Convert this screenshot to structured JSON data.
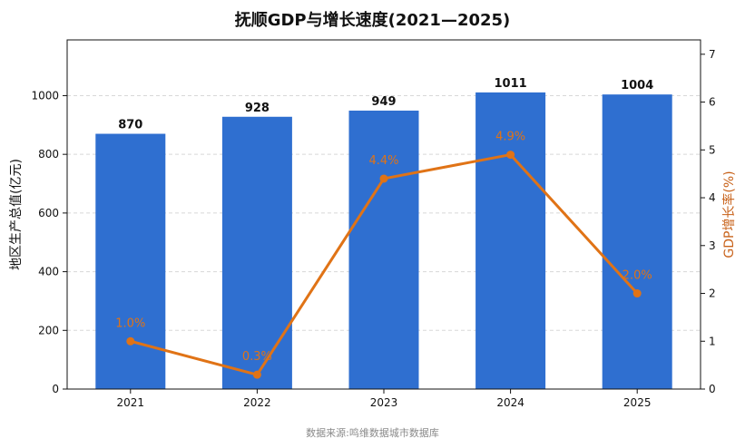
{
  "title": "抚顺GDP与增长速度(2021—2025)",
  "source": "数据来源:鸣维数据城市数据库",
  "colors": {
    "bar": "#2f6fd0",
    "line": "#e07316",
    "axis": "#111111",
    "grid": "#d8d8d8",
    "right_axis_title": "#c8621a"
  },
  "chart_data": {
    "type": "bar",
    "categories": [
      "2021",
      "2022",
      "2023",
      "2024",
      "2025"
    ],
    "series": [
      {
        "type": "bar",
        "axis": "left",
        "values": [
          870,
          928,
          949,
          1011,
          1004
        ],
        "labels": [
          "870",
          "928",
          "949",
          "1011",
          "1004"
        ]
      },
      {
        "type": "line",
        "axis": "right",
        "values": [
          1.0,
          0.3,
          4.4,
          4.9,
          2.0
        ],
        "labels": [
          "1.0%",
          "0.3%",
          "4.4%",
          "4.9%",
          "2.0%"
        ]
      }
    ],
    "ylabel": "地区生产总值(亿元)",
    "y2label": "GDP增长率(%)",
    "ylim": [
      0,
      1190
    ],
    "y2lim": [
      0,
      7.3
    ],
    "yticks": [
      "0",
      "200",
      "400",
      "600",
      "800",
      "1000"
    ],
    "y2ticks": [
      "0",
      "1",
      "2",
      "3",
      "4",
      "5",
      "6",
      "7"
    ],
    "grid": true
  }
}
